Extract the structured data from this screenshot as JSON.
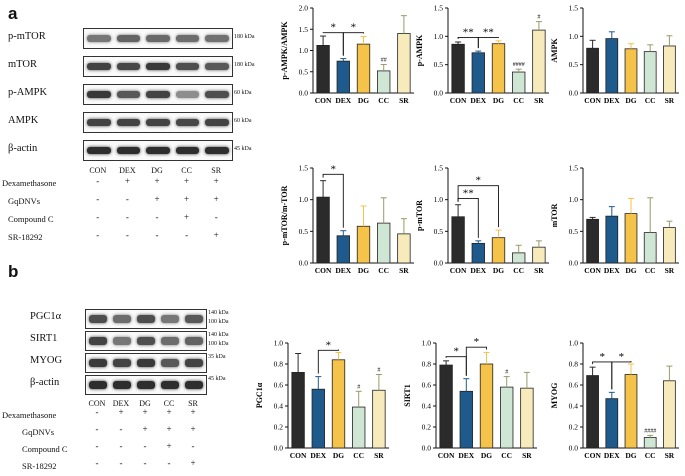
{
  "panel_a": {
    "letter": "a",
    "blots": [
      {
        "label": "p-mTOR",
        "kda": "180 kDa",
        "intensities": [
          0.55,
          0.65,
          0.62,
          0.6,
          0.58
        ]
      },
      {
        "label": "mTOR",
        "kda": "180 kDa",
        "intensities": [
          0.8,
          0.78,
          0.85,
          0.75,
          0.7
        ]
      },
      {
        "label": "p-AMPK",
        "kda": "60 kDa",
        "intensities": [
          0.85,
          0.7,
          0.8,
          0.45,
          0.75
        ]
      },
      {
        "label": "AMPK",
        "kda": "60 kDa",
        "intensities": [
          0.8,
          0.8,
          0.8,
          0.78,
          0.8
        ]
      },
      {
        "label": "β-actin",
        "kda": "45 kDa",
        "intensities": [
          0.9,
          0.9,
          0.9,
          0.9,
          0.9
        ]
      }
    ],
    "lanes": [
      "CON",
      "DEX",
      "DG",
      "CC",
      "SR"
    ],
    "treatments": [
      {
        "name": "Dexamethasone",
        "signs": [
          "-",
          "+",
          "+",
          "+",
          "+"
        ]
      },
      {
        "name": "GqDNVs",
        "signs": [
          "-",
          "-",
          "+",
          "+",
          "+"
        ]
      },
      {
        "name": "Compound C",
        "signs": [
          "-",
          "-",
          "-",
          "+",
          "-"
        ]
      },
      {
        "name": "SR-18292",
        "signs": [
          "-",
          "-",
          "-",
          "-",
          "+"
        ]
      }
    ]
  },
  "panel_b": {
    "letter": "b",
    "blots": [
      {
        "label": "PGC1α",
        "kda_top": "140 kDa",
        "kda_bottom": "100 kDa",
        "intensities": [
          0.75,
          0.6,
          0.75,
          0.55,
          0.7
        ]
      },
      {
        "label": "SIRT1",
        "kda_top": "140 kDa",
        "kda_bottom": "100 kDa",
        "intensities": [
          0.8,
          0.55,
          0.75,
          0.6,
          0.65
        ]
      },
      {
        "label": "MYOG",
        "kda_top": "35 kDa",
        "kda_bottom": "",
        "intensities": [
          0.85,
          0.8,
          0.85,
          0.7,
          0.8
        ]
      },
      {
        "label": "β-actin",
        "kda_top": "45 kDa",
        "kda_bottom": "",
        "intensities": [
          0.9,
          0.9,
          0.9,
          0.9,
          0.9
        ]
      }
    ],
    "lanes": [
      "CON",
      "DEX",
      "DG",
      "CC",
      "SR"
    ],
    "treatments": [
      {
        "name": "Dexamethasone",
        "signs": [
          "-",
          "+",
          "+",
          "+",
          "+"
        ]
      },
      {
        "name": "GqDNVs",
        "signs": [
          "-",
          "-",
          "+",
          "+",
          "+"
        ]
      },
      {
        "name": "Compound C",
        "signs": [
          "-",
          "-",
          "-",
          "+",
          "-"
        ]
      },
      {
        "name": "SR-18292",
        "signs": [
          "-",
          "-",
          "-",
          "-",
          "+"
        ]
      }
    ]
  },
  "colors": {
    "CON": "#2b2b2b",
    "DEX": "#1f5a8c",
    "DG": "#f5c24a",
    "CC": "#cfe6d4",
    "SR": "#f7eabb"
  },
  "chart_data": [
    {
      "id": "pampk-ampk",
      "type": "bar",
      "categories": [
        "CON",
        "DEX",
        "DG",
        "CC",
        "SR"
      ],
      "values": [
        1.12,
        0.75,
        1.15,
        0.52,
        1.4
      ],
      "errors": [
        0.22,
        0.06,
        0.18,
        0.15,
        0.42
      ],
      "ylabel": "p-AMPK/AMPK",
      "ylim": [
        0,
        2.0
      ],
      "yticks": [
        "0.0",
        "0.5",
        "1.0",
        "1.5",
        "2.0"
      ],
      "sig": [
        {
          "from": 0,
          "to": 1,
          "label": "*",
          "level": 1.42
        },
        {
          "from": 1,
          "to": 2,
          "label": "*",
          "level": 1.42
        }
      ],
      "marks": [
        {
          "bar": 3,
          "label": "##"
        }
      ]
    },
    {
      "id": "pampk",
      "type": "bar",
      "categories": [
        "CON",
        "DEX",
        "DG",
        "CC",
        "SR"
      ],
      "values": [
        0.86,
        0.71,
        0.87,
        0.37,
        1.11
      ],
      "errors": [
        0.04,
        0.03,
        0.05,
        0.05,
        0.15
      ],
      "ylabel": "p-AMPK",
      "ylim": [
        0,
        1.5
      ],
      "yticks": [
        "0.0",
        "0.5",
        "1.0",
        "1.5"
      ],
      "sig": [
        {
          "from": 0,
          "to": 1,
          "label": "**",
          "level": 0.98
        },
        {
          "from": 1,
          "to": 2,
          "label": "**",
          "level": 0.98
        }
      ],
      "marks": [
        {
          "bar": 3,
          "label": "####"
        },
        {
          "bar": 4,
          "label": "#"
        }
      ]
    },
    {
      "id": "ampk",
      "type": "bar",
      "categories": [
        "CON",
        "DEX",
        "DG",
        "CC",
        "SR"
      ],
      "values": [
        0.79,
        0.96,
        0.78,
        0.73,
        0.83
      ],
      "errors": [
        0.14,
        0.12,
        0.09,
        0.12,
        0.18
      ],
      "ylabel": "AMPK",
      "ylim": [
        0,
        1.5
      ],
      "yticks": [
        "0.0",
        "0.5",
        "1.0",
        "1.5"
      ],
      "sig": [],
      "marks": []
    },
    {
      "id": "pmtor-mtor",
      "type": "bar",
      "categories": [
        "CON",
        "DEX",
        "DG",
        "CC",
        "SR"
      ],
      "values": [
        1.04,
        0.43,
        0.58,
        0.63,
        0.46
      ],
      "errors": [
        0.26,
        0.08,
        0.32,
        0.4,
        0.24
      ],
      "ylabel": "p-mTOR/m-TOR",
      "ylim": [
        0,
        1.5
      ],
      "yticks": [
        "0.0",
        "0.5",
        "1.0",
        "1.5"
      ],
      "sig": [
        {
          "from": 0,
          "to": 1,
          "label": "*",
          "level": 1.4
        }
      ],
      "marks": []
    },
    {
      "id": "pmtor",
      "type": "bar",
      "categories": [
        "CON",
        "DEX",
        "DG",
        "CC",
        "SR"
      ],
      "values": [
        0.73,
        0.31,
        0.4,
        0.16,
        0.25
      ],
      "errors": [
        0.19,
        0.04,
        0.12,
        0.12,
        0.1
      ],
      "ylabel": "p-mTOR",
      "ylim": [
        0,
        1.5
      ],
      "yticks": [
        "0.0",
        "0.5",
        "1.0",
        "1.5"
      ],
      "sig": [
        {
          "from": 0,
          "to": 1,
          "label": "**",
          "level": 1.02
        },
        {
          "from": 0,
          "to": 2,
          "label": "*",
          "level": 1.22
        }
      ],
      "marks": []
    },
    {
      "id": "mtor",
      "type": "bar",
      "categories": [
        "CON",
        "DEX",
        "DG",
        "CC",
        "SR"
      ],
      "values": [
        0.69,
        0.74,
        0.78,
        0.48,
        0.56
      ],
      "errors": [
        0.03,
        0.15,
        0.24,
        0.55,
        0.1
      ],
      "ylabel": "mTOR",
      "ylim": [
        0,
        1.5
      ],
      "yticks": [
        "0.0",
        "0.5",
        "1.0",
        "1.5"
      ],
      "sig": [],
      "marks": []
    },
    {
      "id": "pgc1a",
      "type": "bar",
      "categories": [
        "CON",
        "DEX",
        "DG",
        "CC",
        "SR"
      ],
      "values": [
        0.72,
        0.56,
        0.84,
        0.39,
        0.55
      ],
      "errors": [
        0.18,
        0.12,
        0.07,
        0.15,
        0.15
      ],
      "ylabel": "PGC1α",
      "ylim": [
        0,
        1.0
      ],
      "yticks": [
        "0.0",
        "0.2",
        "0.4",
        "0.6",
        "0.8",
        "1.0"
      ],
      "sig": [
        {
          "from": 1,
          "to": 2,
          "label": "*",
          "level": 0.93
        }
      ],
      "marks": [
        {
          "bar": 3,
          "label": "#"
        },
        {
          "bar": 4,
          "label": "#"
        }
      ]
    },
    {
      "id": "sirt1",
      "type": "bar",
      "categories": [
        "CON",
        "DEX",
        "DG",
        "CC",
        "SR"
      ],
      "values": [
        0.79,
        0.54,
        0.8,
        0.58,
        0.57
      ],
      "errors": [
        0.04,
        0.12,
        0.11,
        0.1,
        0.15
      ],
      "ylabel": "SIRT1",
      "ylim": [
        0,
        1.0
      ],
      "yticks": [
        "0.0",
        "0.2",
        "0.4",
        "0.6",
        "0.8",
        "1.0"
      ],
      "sig": [
        {
          "from": 0,
          "to": 1,
          "label": "*",
          "level": 0.87
        },
        {
          "from": 1,
          "to": 2,
          "label": "*",
          "level": 0.96
        }
      ],
      "marks": [
        {
          "bar": 3,
          "label": "#"
        }
      ]
    },
    {
      "id": "myog",
      "type": "bar",
      "categories": [
        "CON",
        "DEX",
        "DG",
        "CC",
        "SR"
      ],
      "values": [
        0.69,
        0.47,
        0.7,
        0.1,
        0.64
      ],
      "errors": [
        0.08,
        0.06,
        0.1,
        0.02,
        0.14
      ],
      "ylabel": "MYOG",
      "ylim": [
        0,
        1.0
      ],
      "yticks": [
        "0.0",
        "0.2",
        "0.4",
        "0.6",
        "0.8",
        "1.0"
      ],
      "sig": [
        {
          "from": 0,
          "to": 1,
          "label": "*",
          "level": 0.82
        },
        {
          "from": 1,
          "to": 2,
          "label": "*",
          "level": 0.82
        }
      ],
      "marks": [
        {
          "bar": 3,
          "label": "####"
        }
      ]
    }
  ]
}
